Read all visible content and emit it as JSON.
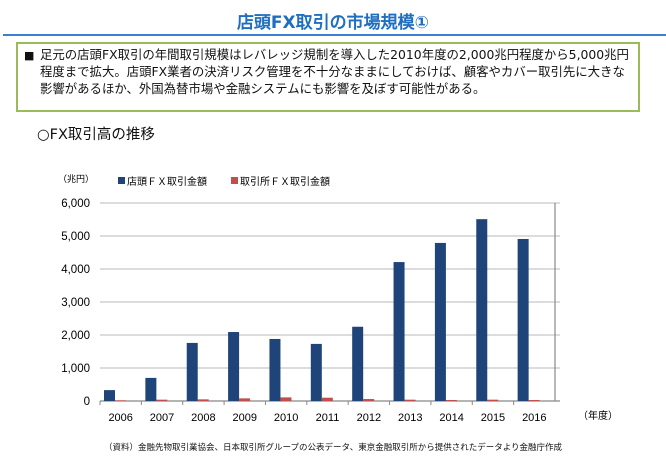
{
  "header": {
    "title": "店頭FX取引の市場規模①"
  },
  "summary": {
    "bullet": "■",
    "text": "足元の店頭FX取引の年間取引規模はレバレッジ規制を導入した2010年度の2,000兆円程度から5,000兆円程度まで拡大。店頭FX業者の決済リスク管理を不十分なままにしておけば、顧客やカバー取引先に大きな影響があるほか、外国為替市場や金融システムにも影響を及ぼす可能性がある。"
  },
  "section_title": "○FX取引高の推移",
  "footnote": "（資料）金融先物取引業協会、日本取引所グループの公表データ、東京金融取引所から提供されたデータより金融庁作成",
  "chart_data": {
    "type": "bar",
    "ylabel": "（兆円）",
    "xlabel": "（年度）",
    "ylim": [
      0,
      6000
    ],
    "yticks": [
      "0",
      "1,000",
      "2,000",
      "3,000",
      "4,000",
      "5,000",
      "6,000"
    ],
    "categories": [
      "2006",
      "2007",
      "2008",
      "2009",
      "2010",
      "2011",
      "2012",
      "2013",
      "2014",
      "2015",
      "2016"
    ],
    "series": [
      {
        "name": "店頭ＦＸ取引金額",
        "color": "#1f4479",
        "values": [
          330,
          700,
          1760,
          2090,
          1880,
          1730,
          2250,
          4210,
          4790,
          5510,
          4910
        ]
      },
      {
        "name": "取引所ＦＸ取引金額",
        "color": "#c0504d",
        "values": [
          20,
          40,
          50,
          80,
          110,
          100,
          60,
          40,
          30,
          40,
          30
        ]
      }
    ],
    "grid": true,
    "legend": "top-left"
  }
}
